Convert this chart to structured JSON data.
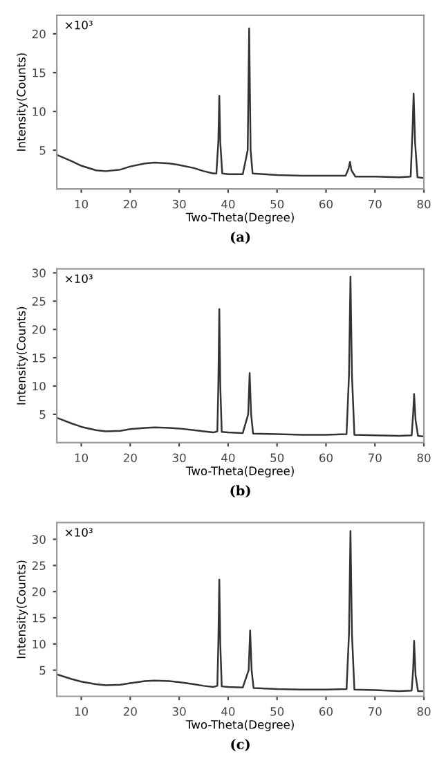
{
  "chart_data": [
    {
      "type": "line",
      "xlabel": "Two-Theta(Degree)",
      "ylabel": "Intensity(Counts)",
      "annotations": [
        "×10³",
        "(a)"
      ],
      "xlim": [
        5,
        80
      ],
      "ylim": [
        0,
        22.4
      ],
      "xticks": [
        10,
        20,
        30,
        40,
        50,
        60,
        70,
        80
      ],
      "yticks": [
        5,
        10,
        15,
        20
      ],
      "grid": false,
      "series": [
        {
          "color": "#333333",
          "x": [
            5,
            8,
            10,
            13,
            15,
            18,
            20,
            23,
            25,
            28,
            30,
            33,
            35,
            37,
            37.6,
            38.0,
            38.2,
            38.4,
            38.8,
            40,
            43,
            44.0,
            44.3,
            44.6,
            45,
            50,
            55,
            60,
            64,
            64.6,
            64.9,
            65.2,
            66,
            70,
            75,
            77.3,
            77.7,
            77.9,
            78.2,
            78.7,
            80
          ],
          "values": [
            4.4,
            3.6,
            3.0,
            2.4,
            2.3,
            2.5,
            2.9,
            3.3,
            3.4,
            3.3,
            3.1,
            2.7,
            2.3,
            2.0,
            2.0,
            6,
            12.0,
            6,
            2.0,
            1.9,
            1.9,
            5,
            20.7,
            5,
            2.0,
            1.8,
            1.7,
            1.7,
            1.7,
            2.6,
            3.5,
            2.4,
            1.6,
            1.6,
            1.5,
            1.6,
            8,
            12.3,
            6,
            1.5,
            1.4
          ]
        }
      ]
    },
    {
      "type": "line",
      "xlabel": "Two-Theta(Degree)",
      "ylabel": "Intensity(Counts)",
      "annotations": [
        "×10³",
        "(b)"
      ],
      "xlim": [
        5,
        80
      ],
      "ylim": [
        0,
        30.7
      ],
      "xticks": [
        10,
        20,
        30,
        40,
        50,
        60,
        70,
        80
      ],
      "yticks": [
        5,
        10,
        15,
        20,
        25,
        30
      ],
      "grid": false,
      "series": [
        {
          "color": "#333333",
          "x": [
            5,
            8,
            10,
            13,
            15,
            18,
            20,
            23,
            25,
            28,
            30,
            33,
            35,
            37,
            37.8,
            38.0,
            38.2,
            38.4,
            38.7,
            40,
            43,
            44.1,
            44.4,
            44.7,
            45.1,
            50,
            55,
            60,
            64.2,
            64.7,
            65.0,
            65.3,
            65.8,
            70,
            75,
            77.5,
            77.8,
            78.0,
            78.3,
            78.8,
            80
          ],
          "values": [
            4.4,
            3.4,
            2.8,
            2.2,
            2.0,
            2.1,
            2.4,
            2.6,
            2.7,
            2.6,
            2.5,
            2.2,
            2.0,
            1.8,
            2.0,
            10,
            23.6,
            10,
            1.9,
            1.8,
            1.7,
            5,
            12.3,
            5,
            1.6,
            1.5,
            1.4,
            1.4,
            1.5,
            12,
            29.3,
            12,
            1.4,
            1.3,
            1.2,
            1.3,
            5,
            8.6,
            4,
            1.2,
            1.1
          ]
        }
      ]
    },
    {
      "type": "line",
      "xlabel": "Two-Theta(Degree)",
      "ylabel": "Intensity(Counts)",
      "annotations": [
        "×10³",
        "(c)"
      ],
      "xlim": [
        5,
        80
      ],
      "ylim": [
        0,
        33.2
      ],
      "xticks": [
        10,
        20,
        30,
        40,
        50,
        60,
        70,
        80
      ],
      "yticks": [
        5,
        10,
        15,
        20,
        25,
        30
      ],
      "grid": false,
      "series": [
        {
          "color": "#333333",
          "x": [
            5,
            8,
            10,
            13,
            15,
            18,
            20,
            23,
            25,
            28,
            30,
            33,
            35,
            37,
            37.8,
            38.0,
            38.2,
            38.4,
            38.7,
            40,
            43,
            44.2,
            44.5,
            44.8,
            45.2,
            50,
            55,
            60,
            64.2,
            64.7,
            65.0,
            65.3,
            65.8,
            70,
            75,
            77.5,
            77.8,
            78.0,
            78.3,
            78.8,
            80
          ],
          "values": [
            4.2,
            3.3,
            2.8,
            2.3,
            2.1,
            2.2,
            2.5,
            2.9,
            3.0,
            2.9,
            2.7,
            2.3,
            2.0,
            1.8,
            2.0,
            10,
            22.3,
            10,
            1.9,
            1.8,
            1.7,
            5,
            12.6,
            5,
            1.6,
            1.4,
            1.3,
            1.3,
            1.4,
            12,
            31.6,
            12,
            1.3,
            1.2,
            1.0,
            1.1,
            5,
            10.6,
            4,
            1.0,
            1.0
          ]
        }
      ]
    }
  ]
}
